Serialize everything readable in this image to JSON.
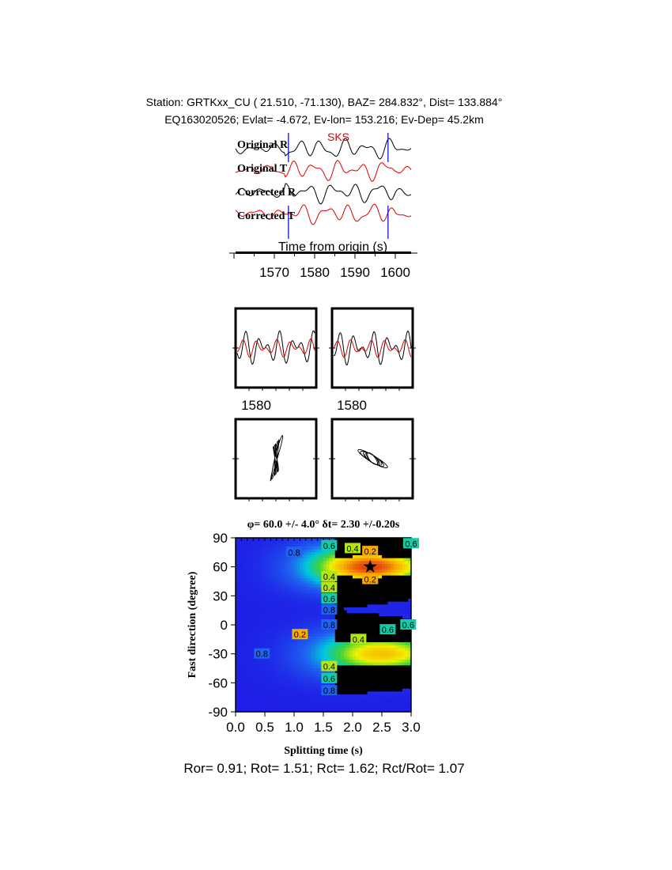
{
  "header": {
    "line1": "Station: GRTKxx_CU (  21.510,  -71.130), BAZ=  284.832°, Dist=  133.884°",
    "line2": "EQ163020526; Evlat=  -4.672, Ev-lon= 153.216; Ev-Dep= 45.2km"
  },
  "traces": {
    "labels": [
      "Original R",
      "Original T",
      "Corrected R",
      "Corrected T"
    ],
    "phase_label": "SKS",
    "xlabel": "Time from origin (s)",
    "xticks": [
      "1570",
      "1580",
      "1590",
      "1600"
    ],
    "window_markers_s": [
      1573.5,
      1598.2
    ],
    "colors": {
      "radial": "#000000",
      "transverse": "#dd0000",
      "marker": "#0000cc"
    }
  },
  "small_panels": {
    "tick_left": "1580",
    "tick_right": "1580"
  },
  "chart_data": {
    "type": "heatmap",
    "title": "φ= 60.0 +/- 4.0° δt= 2.30 +/-0.20s",
    "xlabel": "Splitting time (s)",
    "ylabel": "Fast direction (degree)",
    "xlim": [
      0.0,
      3.0
    ],
    "ylim": [
      -90,
      90
    ],
    "xticks": [
      "0.0",
      "0.5",
      "1.0",
      "1.5",
      "2.0",
      "2.5",
      "3.0"
    ],
    "yticks": [
      "90",
      "60",
      "30",
      "0",
      "-30",
      "-60",
      "-90"
    ],
    "best_fit": {
      "phi": 60.0,
      "phi_err": 4.0,
      "dt": 2.3,
      "dt_err": 0.2
    },
    "contour_labels": [
      "0.8",
      "0.6",
      "0.4",
      "0.2",
      "0.2",
      "0.6",
      "0.4",
      "0.4",
      "0.6",
      "0.8",
      "0.8",
      "0.6",
      "0.4",
      "0.2",
      "0.8",
      "0.4",
      "0.6",
      "0.8",
      "0.6"
    ]
  },
  "stats": "Ror= 0.91; Rot= 1.51; Rct= 1.62; Rct/Rot= 1.07"
}
